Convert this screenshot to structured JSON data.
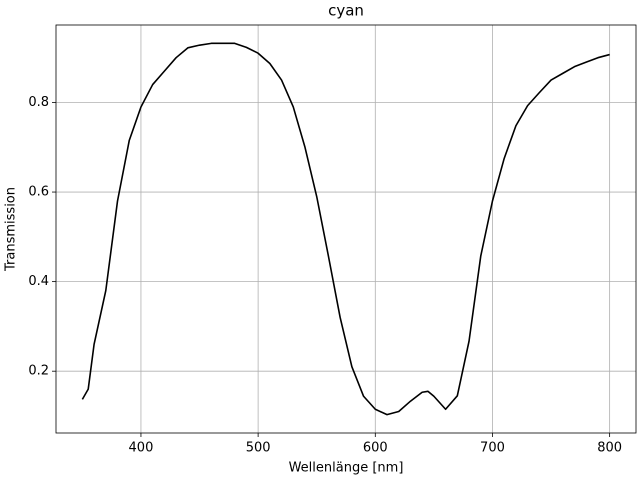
{
  "chart_data": {
    "type": "line",
    "title": "cyan",
    "x_label": "Wellenlänge [nm]",
    "y_label": "Transmission",
    "x": [
      350,
      355,
      360,
      370,
      380,
      390,
      400,
      410,
      420,
      430,
      440,
      450,
      460,
      470,
      480,
      490,
      500,
      510,
      520,
      530,
      540,
      550,
      560,
      570,
      580,
      590,
      600,
      610,
      620,
      630,
      640,
      645,
      650,
      660,
      670,
      680,
      690,
      700,
      710,
      720,
      730,
      740,
      750,
      760,
      770,
      780,
      790,
      800
    ],
    "series": [
      {
        "name": "cyan",
        "color": "#000000",
        "values": [
          0.137,
          0.16,
          0.26,
          0.38,
          0.58,
          0.715,
          0.79,
          0.84,
          0.87,
          0.9,
          0.922,
          0.928,
          0.932,
          0.932,
          0.932,
          0.923,
          0.91,
          0.887,
          0.85,
          0.79,
          0.7,
          0.59,
          0.457,
          0.32,
          0.21,
          0.144,
          0.115,
          0.103,
          0.11,
          0.133,
          0.153,
          0.155,
          0.144,
          0.115,
          0.145,
          0.267,
          0.457,
          0.58,
          0.675,
          0.748,
          0.793,
          0.822,
          0.85,
          0.865,
          0.88,
          0.89,
          0.9,
          0.907
        ]
      }
    ],
    "xlim": [
      327.5,
      822.5
    ],
    "ylim": [
      0.062,
      0.973
    ],
    "xticks": [
      400,
      500,
      600,
      700,
      800
    ],
    "yticks": [
      0.2,
      0.4,
      0.6,
      0.8
    ],
    "grid": true
  }
}
